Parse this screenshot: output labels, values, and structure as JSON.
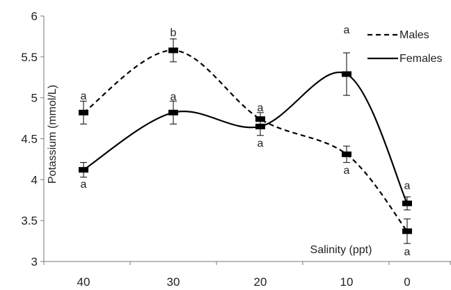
{
  "chart_data": {
    "type": "line",
    "x": [
      "40",
      "30",
      "20",
      "10",
      "0"
    ],
    "xlabel": "Salinity (ppt)",
    "ylabel": "Potassium (mmol/L)",
    "ylim": [
      3,
      6
    ],
    "yticks": [
      3,
      3.5,
      4,
      4.5,
      5,
      5.5,
      6
    ],
    "ytick_labels": [
      "3",
      "3.5",
      "4",
      "4.5",
      "5",
      "5.5",
      "6"
    ],
    "grid": false,
    "legend_position": "top-right",
    "series": [
      {
        "name": "Males",
        "line_style": "dashed",
        "color": "#000000",
        "values": [
          4.82,
          5.58,
          4.74,
          4.31,
          3.37
        ],
        "errors": [
          0.14,
          0.14,
          0.08,
          0.1,
          0.15
        ],
        "annotations": [
          "a",
          "b",
          "a",
          "a",
          "a"
        ]
      },
      {
        "name": "Females",
        "line_style": "solid",
        "color": "#000000",
        "values": [
          4.12,
          4.82,
          4.65,
          5.29,
          3.71
        ],
        "errors": [
          0.09,
          0.14,
          0.11,
          0.26,
          0.08
        ],
        "annotations": [
          "a",
          "a",
          "a",
          "a",
          "a"
        ]
      }
    ]
  }
}
